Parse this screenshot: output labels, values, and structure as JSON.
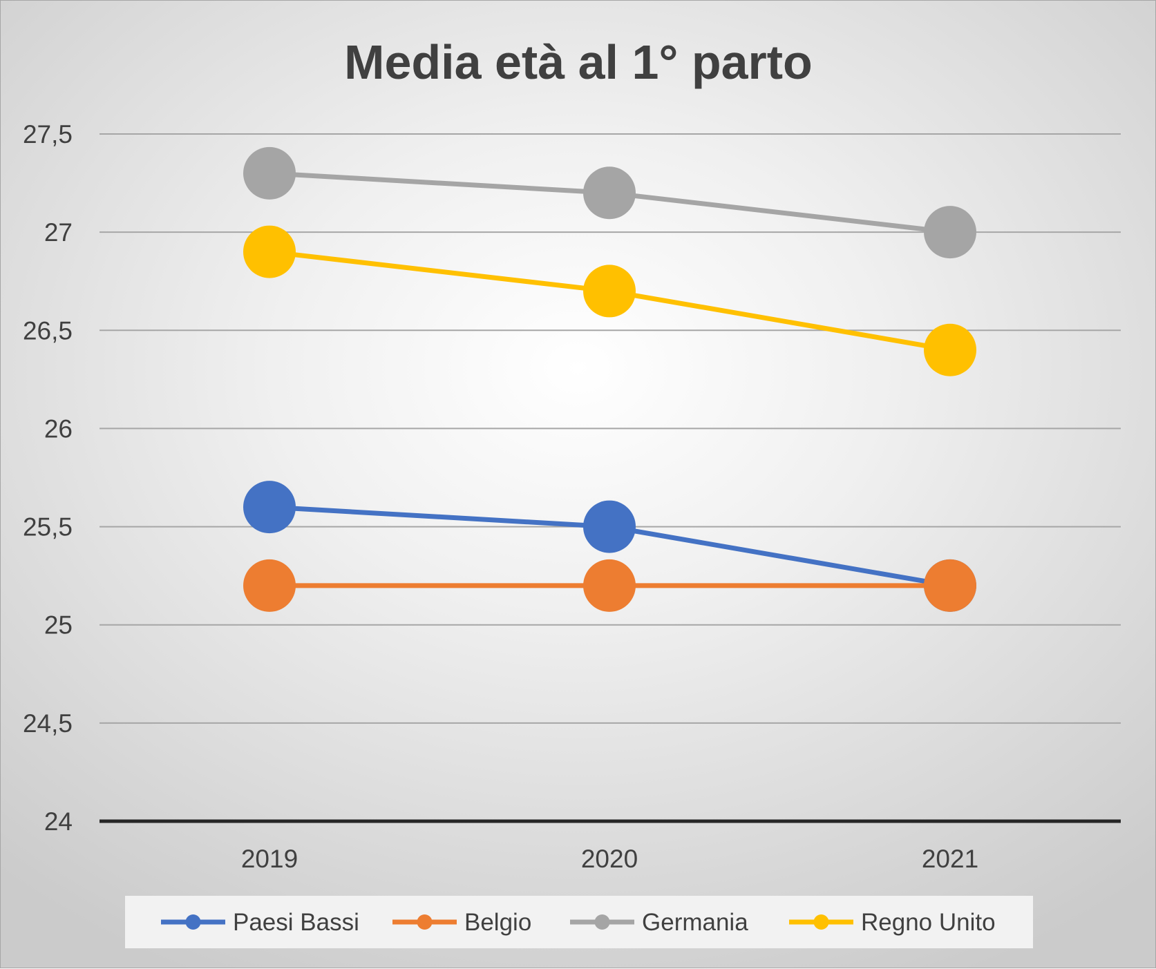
{
  "chart_data": {
    "type": "line",
    "title": "Media età al 1° parto",
    "xlabel": "",
    "ylabel": "",
    "categories": [
      "2019",
      "2020",
      "2021"
    ],
    "yticks": [
      "24",
      "24,5",
      "25",
      "25,5",
      "26",
      "26,5",
      "27",
      "27,5"
    ],
    "ylim": [
      24,
      27.5
    ],
    "grid": true,
    "legend_position": "bottom",
    "series": [
      {
        "name": "Paesi Bassi",
        "color": "#4472c4",
        "values": [
          25.6,
          25.5,
          25.2
        ]
      },
      {
        "name": "Belgio",
        "color": "#ed7d31",
        "values": [
          25.2,
          25.2,
          25.2
        ]
      },
      {
        "name": "Germania",
        "color": "#a5a5a5",
        "values": [
          27.3,
          27.2,
          27.0
        ]
      },
      {
        "name": "Regno Unito",
        "color": "#ffc000",
        "values": [
          26.9,
          26.7,
          26.4
        ]
      }
    ]
  }
}
